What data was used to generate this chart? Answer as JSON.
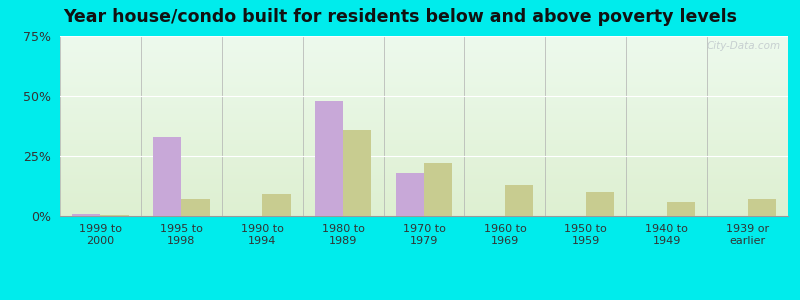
{
  "categories": [
    "1999 to\n2000",
    "1995 to\n1998",
    "1990 to\n1994",
    "1980 to\n1989",
    "1970 to\n1979",
    "1960 to\n1969",
    "1950 to\n1959",
    "1940 to\n1949",
    "1939 or\nearlier"
  ],
  "below_poverty": [
    1.0,
    33.0,
    0.0,
    48.0,
    18.0,
    0.0,
    0.0,
    0.0,
    0.0
  ],
  "above_poverty": [
    0.5,
    7.0,
    9.0,
    36.0,
    22.0,
    13.0,
    10.0,
    6.0,
    7.0
  ],
  "below_color": "#c8a8d8",
  "above_color": "#c8cc90",
  "title": "Year house/condo built for residents below and above poverty levels",
  "title_fontsize": 12.5,
  "ylim": [
    0,
    75
  ],
  "yticks": [
    0,
    25,
    50,
    75
  ],
  "ytick_labels": [
    "0%",
    "25%",
    "50%",
    "75%"
  ],
  "bar_width": 0.35,
  "outer_bg": "#00ecec",
  "watermark": "City-Data.com"
}
